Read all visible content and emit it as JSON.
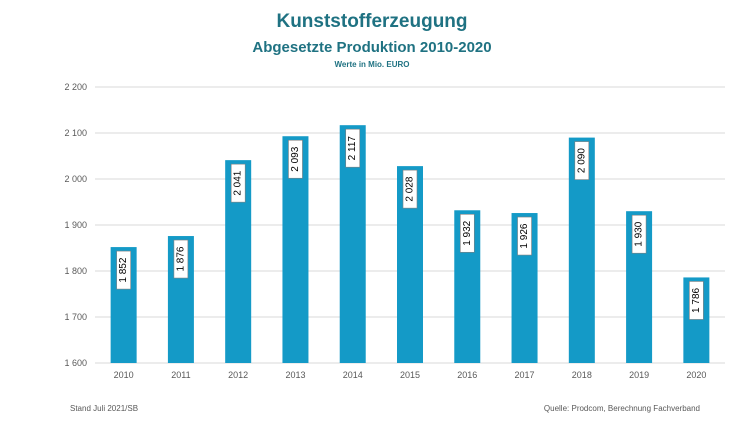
{
  "chart_data": {
    "type": "bar",
    "title": "Kunststofferzeugung",
    "subtitle": "Abgesetzte Produktion 2010-2020",
    "unit_note": "Werte in Mio. EURO",
    "categories": [
      "2010",
      "2011",
      "2012",
      "2013",
      "2014",
      "2015",
      "2016",
      "2017",
      "2018",
      "2019",
      "2020"
    ],
    "values": [
      1852,
      1876,
      2041,
      2093,
      2117,
      2028,
      1932,
      1926,
      2090,
      1930,
      1786
    ],
    "value_labels": [
      "1 852",
      "1 876",
      "2 041",
      "2 093",
      "2 117",
      "2 028",
      "1 932",
      "1 926",
      "2 090",
      "1 930",
      "1 786"
    ],
    "ylim": [
      1600,
      2200
    ],
    "yticks": [
      1600,
      1700,
      1800,
      1900,
      2000,
      2100,
      2200
    ],
    "ytick_labels": [
      "1 600",
      "1 700",
      "1 800",
      "1 900",
      "2 000",
      "2 100",
      "2 200"
    ],
    "grid": true,
    "colors": {
      "bar": "#149ac7",
      "title": "#1f7282",
      "grid": "#d9d9d9"
    }
  },
  "footer": {
    "left": "Stand Juli 2021/SB",
    "right": "Quelle: Prodcom, Berechnung Fachverband"
  }
}
